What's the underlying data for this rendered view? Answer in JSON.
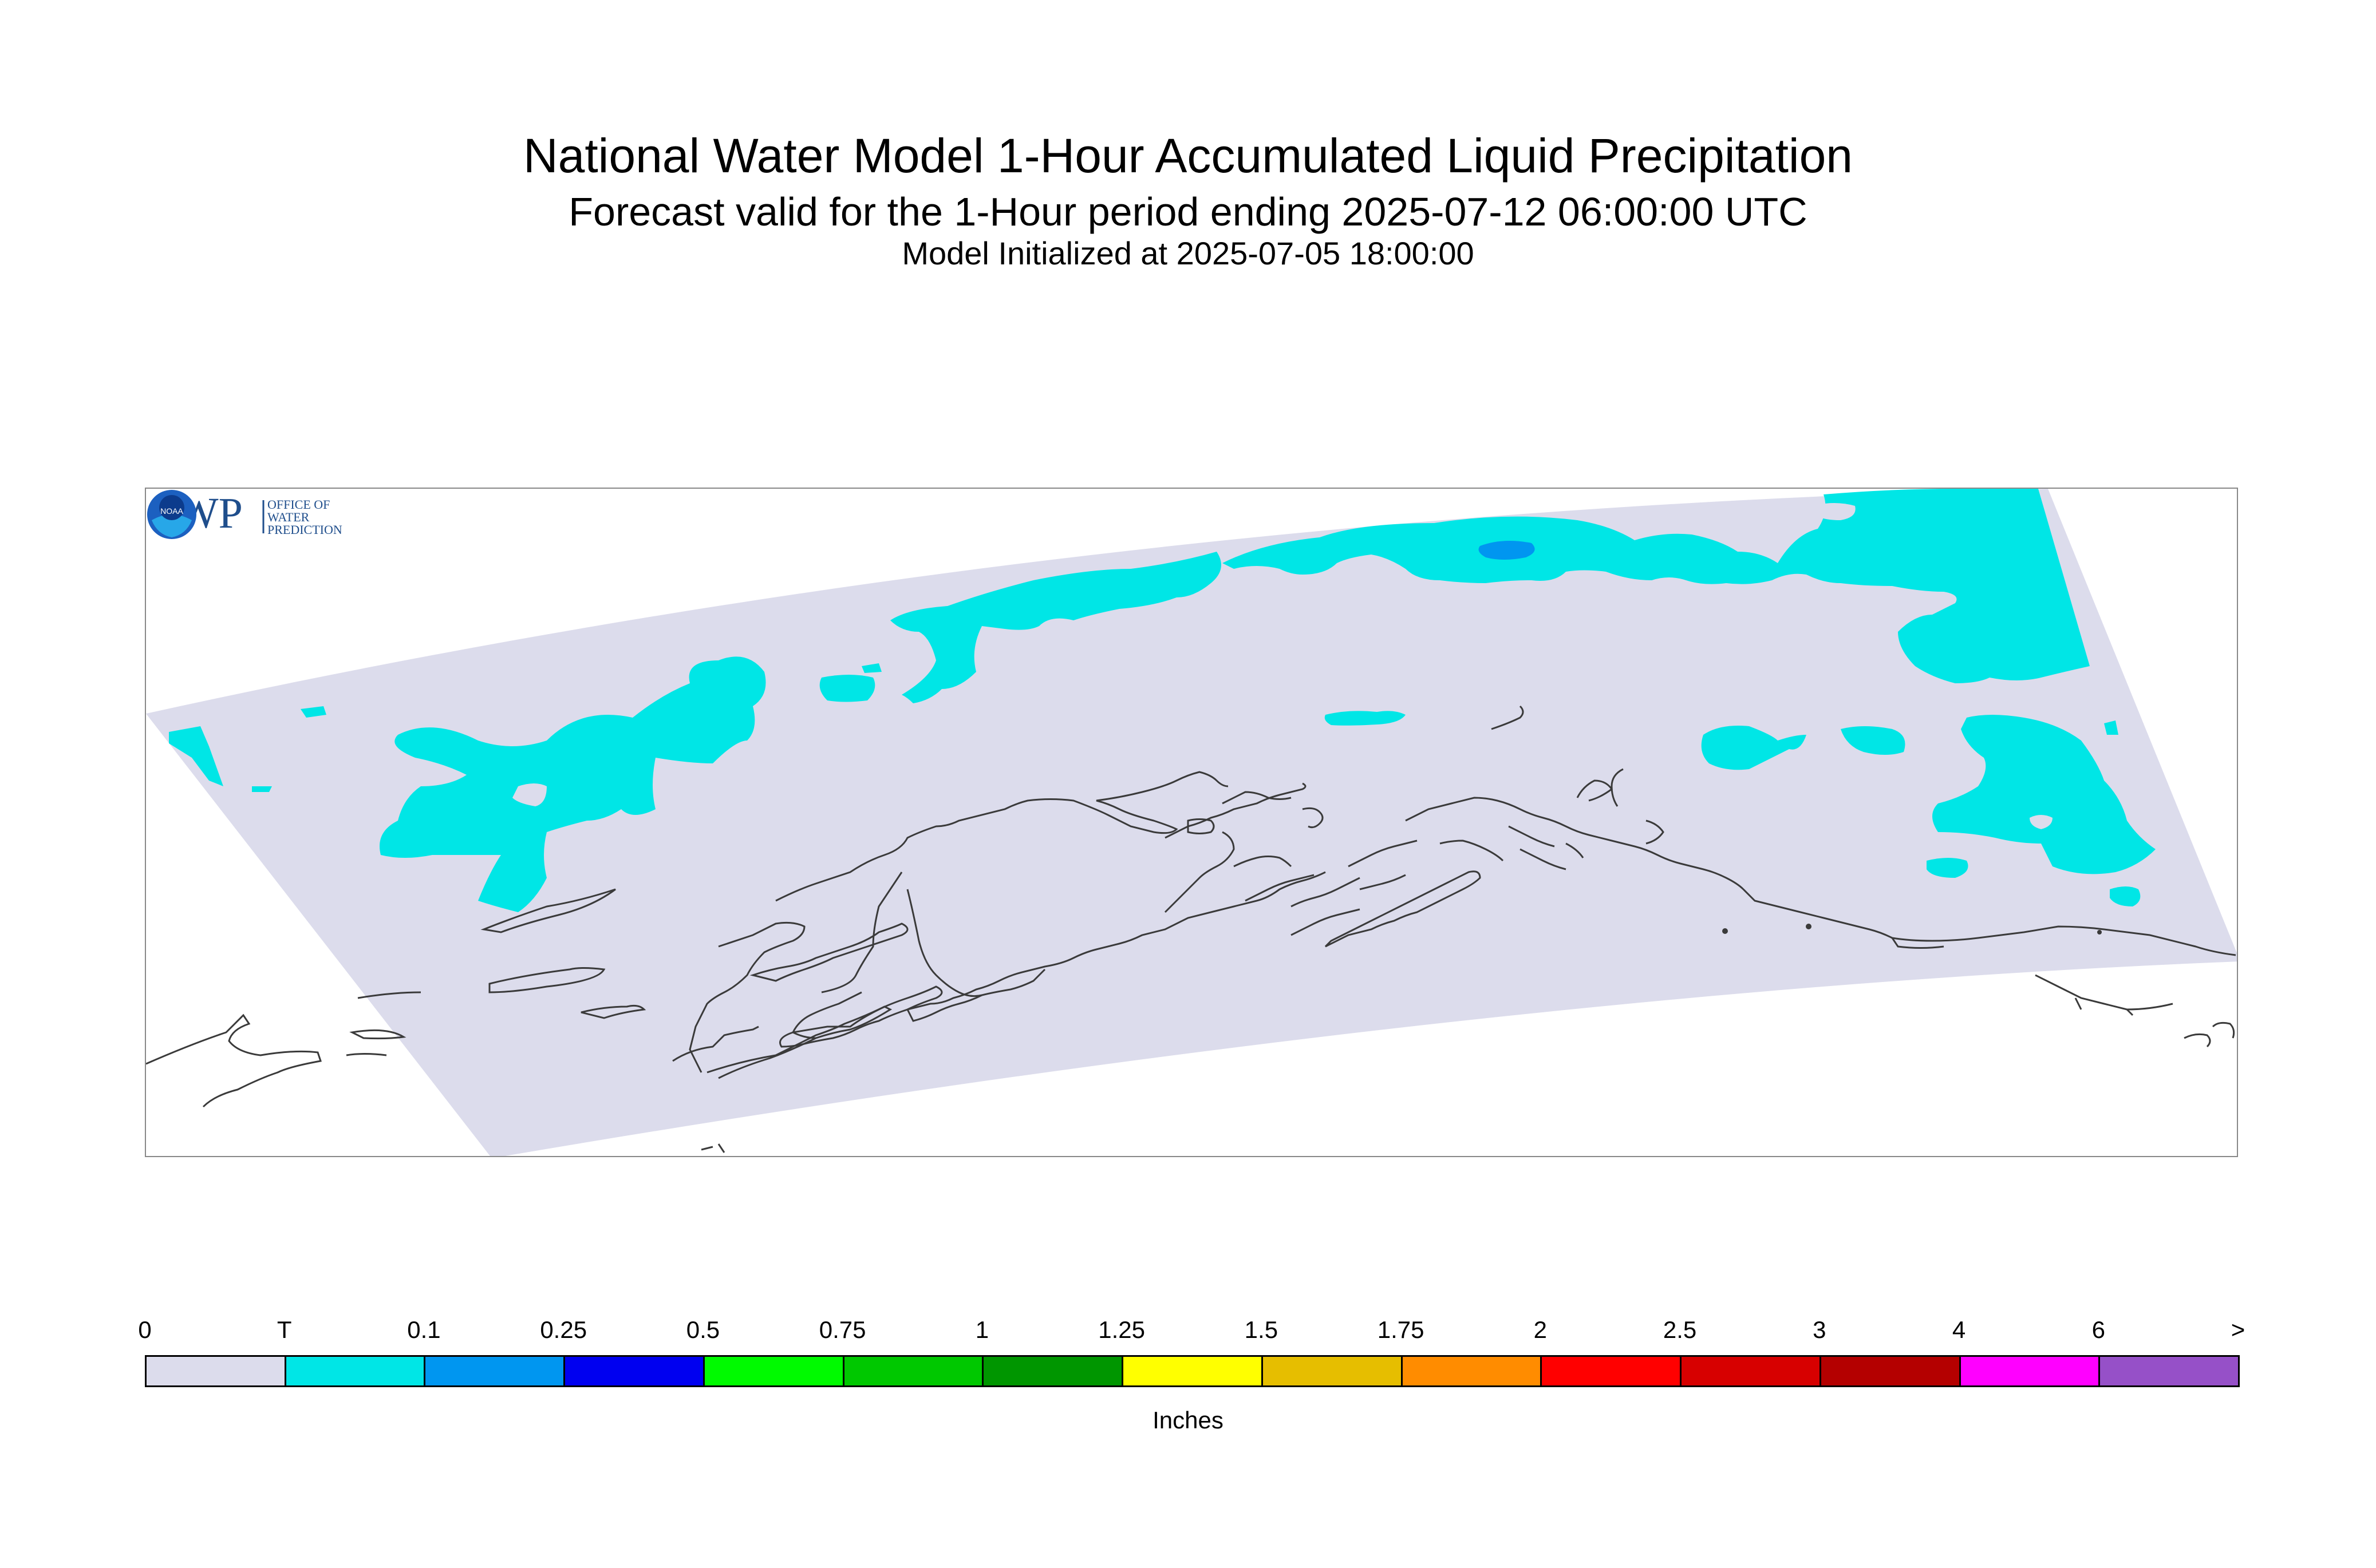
{
  "header": {
    "title": "National Water Model 1-Hour Accumulated Liquid Precipitation",
    "subtitle": "Forecast valid for the 1-Hour period ending 2025-07-12 06:00:00 UTC",
    "init": "Model Initialized at 2025-07-05 18:00:00"
  },
  "map": {
    "domain_color": "#dcdcec",
    "coast_color": "#3a3a3a",
    "precip_colors": {
      "trace": "#00e6e6",
      "light": "#0096f0"
    }
  },
  "logos": {
    "owp": {
      "mark": "OWP",
      "lines": [
        "OFFICE OF",
        "WATER",
        "PREDICTION"
      ]
    },
    "noaa": {
      "mark": "NOAA"
    }
  },
  "legend": {
    "ticks": [
      "0",
      "T",
      "0.1",
      "0.25",
      "0.5",
      "0.75",
      "1",
      "1.25",
      "1.5",
      "1.75",
      "2",
      "2.5",
      "3",
      "4",
      "6",
      ">"
    ],
    "colors": [
      "#dcdcec",
      "#00e6e6",
      "#0096f0",
      "#0000f0",
      "#00fa00",
      "#00c800",
      "#009600",
      "#ffff00",
      "#e6be00",
      "#ff8c00",
      "#ff0000",
      "#d70000",
      "#b40000",
      "#ff00ff",
      "#9650c8"
    ],
    "label": "Inches"
  }
}
